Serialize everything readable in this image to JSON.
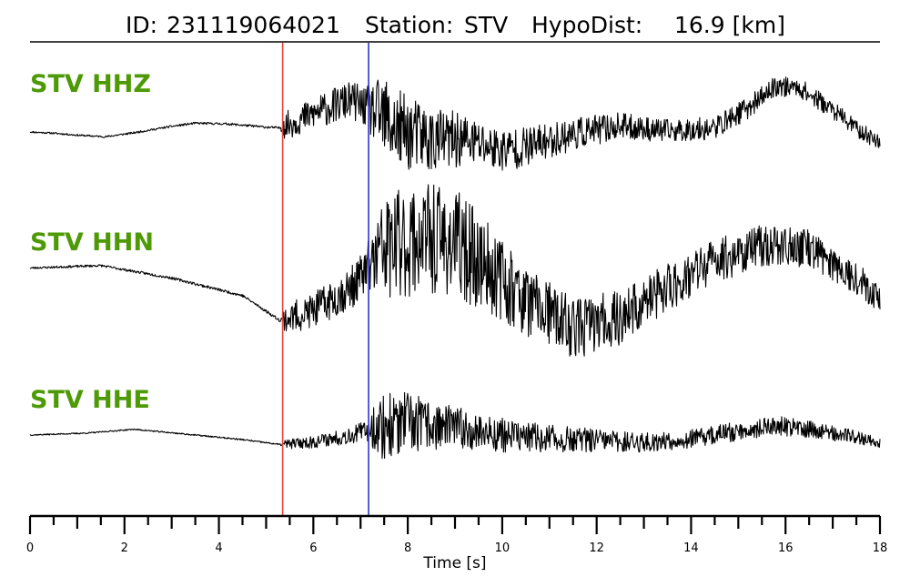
{
  "chart_data": {
    "type": "line",
    "title": {
      "id_label": "ID:",
      "id_value": "231119064021",
      "station_label": "Station:",
      "station_value": "STV",
      "dist_label": "HypoDist:",
      "dist_value": "16.9 [km]"
    },
    "xlabel": "Time [s]",
    "ylabel": "",
    "xlim": [
      0,
      18
    ],
    "xticks": [
      "0",
      "2",
      "4",
      "6",
      "8",
      "10",
      "12",
      "14",
      "16",
      "18"
    ],
    "minor_tick_step": 0.5,
    "grid": false,
    "label_color": "#4e9a06",
    "trace_color": "#000000",
    "picks": [
      {
        "phase": "P",
        "time": 5.35,
        "color": "#e8413c"
      },
      {
        "phase": "S",
        "time": 7.17,
        "color": "#2b36c9"
      }
    ],
    "series": [
      {
        "name": "STV HHZ",
        "baseline": [
          [
            0,
            0.0
          ],
          [
            0.5,
            -0.03
          ],
          [
            1.0,
            -0.08
          ],
          [
            1.6,
            -0.12
          ],
          [
            2.2,
            -0.02
          ],
          [
            3.0,
            0.14
          ],
          [
            3.5,
            0.22
          ],
          [
            4.2,
            0.2
          ],
          [
            5.0,
            0.12
          ],
          [
            5.3,
            0.1
          ],
          [
            5.6,
            0.25
          ],
          [
            6.2,
            0.55
          ],
          [
            6.8,
            0.8
          ],
          [
            7.2,
            0.55
          ],
          [
            7.8,
            0.05
          ],
          [
            8.5,
            -0.2
          ],
          [
            9.2,
            -0.2
          ],
          [
            10.0,
            -0.45
          ],
          [
            10.6,
            -0.35
          ],
          [
            11.5,
            -0.05
          ],
          [
            12.5,
            0.15
          ],
          [
            13.5,
            0.02
          ],
          [
            14.5,
            0.1
          ],
          [
            15.2,
            0.6
          ],
          [
            15.8,
            1.15
          ],
          [
            16.3,
            1.1
          ],
          [
            17.0,
            0.55
          ],
          [
            17.6,
            0.0
          ],
          [
            18.0,
            -0.25
          ]
        ],
        "noise": [
          [
            0,
            0.02
          ],
          [
            5.3,
            0.03
          ],
          [
            5.4,
            0.35
          ],
          [
            7.1,
            0.5
          ],
          [
            7.5,
            1.1
          ],
          [
            8.0,
            0.95
          ],
          [
            9.5,
            0.6
          ],
          [
            11.0,
            0.45
          ],
          [
            13.0,
            0.3
          ],
          [
            15.0,
            0.28
          ],
          [
            18.0,
            0.2
          ]
        ],
        "seed": 11
      },
      {
        "name": "STV HHN",
        "baseline": [
          [
            0,
            0.1
          ],
          [
            1.5,
            0.15
          ],
          [
            3.0,
            -0.1
          ],
          [
            4.5,
            -0.45
          ],
          [
            5.3,
            -0.95
          ],
          [
            6.0,
            -0.75
          ],
          [
            6.8,
            -0.3
          ],
          [
            7.5,
            0.5
          ],
          [
            8.3,
            0.7
          ],
          [
            9.0,
            0.6
          ],
          [
            9.8,
            0.05
          ],
          [
            10.5,
            -0.55
          ],
          [
            11.5,
            -1.1
          ],
          [
            12.5,
            -0.9
          ],
          [
            13.5,
            -0.3
          ],
          [
            14.5,
            0.25
          ],
          [
            15.5,
            0.55
          ],
          [
            16.5,
            0.5
          ],
          [
            17.5,
            -0.1
          ],
          [
            18.0,
            -0.5
          ]
        ],
        "noise": [
          [
            0,
            0.02
          ],
          [
            5.3,
            0.03
          ],
          [
            5.4,
            0.3
          ],
          [
            7.1,
            0.45
          ],
          [
            7.5,
            1.1
          ],
          [
            9.0,
            1.1
          ],
          [
            10.5,
            0.7
          ],
          [
            12.5,
            0.55
          ],
          [
            15.0,
            0.45
          ],
          [
            18.0,
            0.3
          ]
        ],
        "seed": 23
      },
      {
        "name": "STV HHE",
        "baseline": [
          [
            0,
            0.0
          ],
          [
            1.2,
            0.05
          ],
          [
            2.2,
            0.15
          ],
          [
            3.5,
            0.0
          ],
          [
            4.5,
            -0.12
          ],
          [
            5.3,
            -0.25
          ],
          [
            6.0,
            -0.18
          ],
          [
            6.8,
            0.0
          ],
          [
            7.3,
            0.2
          ],
          [
            8.0,
            0.3
          ],
          [
            9.0,
            0.2
          ],
          [
            10.0,
            0.0
          ],
          [
            11.0,
            -0.1
          ],
          [
            12.0,
            -0.15
          ],
          [
            13.0,
            -0.2
          ],
          [
            14.0,
            -0.1
          ],
          [
            15.0,
            0.1
          ],
          [
            15.8,
            0.25
          ],
          [
            16.5,
            0.15
          ],
          [
            17.5,
            -0.05
          ],
          [
            18.0,
            -0.2
          ]
        ],
        "noise": [
          [
            0,
            0.015
          ],
          [
            5.3,
            0.02
          ],
          [
            5.4,
            0.12
          ],
          [
            7.1,
            0.25
          ],
          [
            7.5,
            0.95
          ],
          [
            8.0,
            0.8
          ],
          [
            9.0,
            0.55
          ],
          [
            10.5,
            0.4
          ],
          [
            13.0,
            0.25
          ],
          [
            16.0,
            0.25
          ],
          [
            18.0,
            0.15
          ]
        ],
        "seed": 37
      }
    ]
  }
}
